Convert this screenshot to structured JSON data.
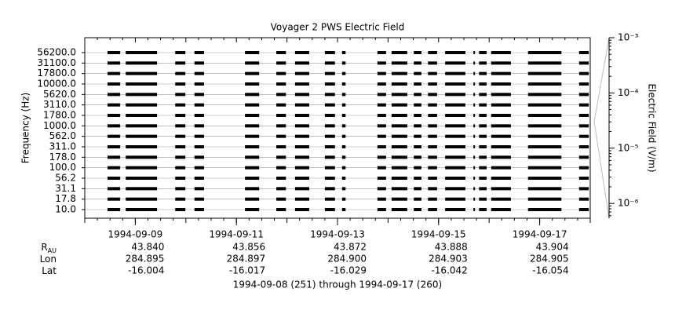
{
  "chart_data": {
    "type": "coverage",
    "title": "Voyager 2 PWS Electric Field",
    "y_label": "Frequency (Hz)",
    "y2_label": "Electric Field (V/m)",
    "categories": [
      "56200.0",
      "31100.0",
      "17800.0",
      "10000.0",
      "5620.0",
      "3110.0",
      "1780.0",
      "1000.0",
      "562.0",
      "311.0",
      "178.0",
      "100.0",
      "56.2",
      "31.1",
      "17.8",
      "10.0"
    ],
    "xlim": [
      251,
      261
    ],
    "xticks": [
      {
        "value": 252,
        "label": "1994-09-09"
      },
      {
        "value": 254,
        "label": "1994-09-11"
      },
      {
        "value": 256,
        "label": "1994-09-13"
      },
      {
        "value": 258,
        "label": "1994-09-15"
      },
      {
        "value": 260,
        "label": "1994-09-17"
      }
    ],
    "segments": [
      [
        251.45,
        251.7
      ],
      [
        251.81,
        252.43
      ],
      [
        252.79,
        252.99
      ],
      [
        253.17,
        253.36
      ],
      [
        254.17,
        254.45
      ],
      [
        254.79,
        254.98
      ],
      [
        255.16,
        255.44
      ],
      [
        255.75,
        255.95
      ],
      [
        256.09,
        256.16
      ],
      [
        256.79,
        256.96
      ],
      [
        257.07,
        257.38
      ],
      [
        257.51,
        257.66
      ],
      [
        257.79,
        257.97
      ],
      [
        258.13,
        258.53
      ],
      [
        258.69,
        258.72
      ],
      [
        258.8,
        258.95
      ],
      [
        259.04,
        259.43
      ],
      [
        259.77,
        260.43
      ],
      [
        260.78,
        260.97
      ]
    ],
    "color": "#000000",
    "y2_log": true,
    "y2lim": [
      5.4e-07,
      0.001
    ],
    "y2ticks": [
      {
        "value": 0.001,
        "label": "10⁻³"
      },
      {
        "value": 0.0001,
        "label": "10⁻⁴"
      },
      {
        "value": 1e-05,
        "label": "10⁻⁵"
      },
      {
        "value": 1e-06,
        "label": "10⁻⁶"
      }
    ],
    "ephemeris": [
      {
        "label": "R",
        "sub": "AU",
        "values": [
          "43.840",
          "43.856",
          "43.872",
          "43.888",
          "43.904"
        ]
      },
      {
        "label": "Lon",
        "values": [
          "284.895",
          "284.897",
          "284.900",
          "284.903",
          "284.905"
        ]
      },
      {
        "label": "Lat",
        "values": [
          "-16.004",
          "-16.017",
          "-16.029",
          "-16.042",
          "-16.054"
        ]
      }
    ],
    "caption": "1994-09-08 (251) through 1994-09-17 (260)"
  }
}
